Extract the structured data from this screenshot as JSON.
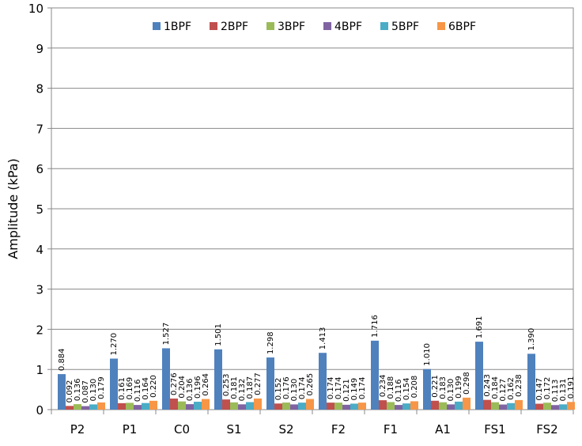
{
  "chart_data": {
    "type": "bar",
    "ylabel": "Amplitude (kPa)",
    "xlabel": "",
    "ylim": [
      0,
      10
    ],
    "yticks": [
      "0",
      "1",
      "2",
      "3",
      "4",
      "5",
      "6",
      "7",
      "8",
      "9",
      "10"
    ],
    "grid": true,
    "legend_position": "top-center",
    "categories": [
      "P2",
      "P1",
      "C0",
      "S1",
      "S2",
      "F2",
      "F1",
      "A1",
      "FS1",
      "FS2"
    ],
    "series": [
      {
        "name": "1BPF",
        "color": "#4F81BD",
        "values": [
          0.884,
          1.27,
          1.527,
          1.501,
          1.298,
          1.413,
          1.716,
          1.01,
          1.691,
          1.39
        ],
        "labels": [
          "0.884",
          "1.270",
          "1.527",
          "1.501",
          "1.298",
          "1.413",
          "1.716",
          "1.010",
          "1.691",
          "1.390"
        ]
      },
      {
        "name": "2BPF",
        "color": "#C0504D",
        "values": [
          0.092,
          0.161,
          0.276,
          0.253,
          0.152,
          0.174,
          0.234,
          0.221,
          0.243,
          0.147
        ],
        "labels": [
          "0.092",
          "0.161",
          "0.276",
          "0.253",
          "0.152",
          "0.174",
          "0.234",
          "0.221",
          "0.243",
          "0.147"
        ]
      },
      {
        "name": "3BPF",
        "color": "#9BBB59",
        "values": [
          0.136,
          0.169,
          0.204,
          0.181,
          0.176,
          0.174,
          0.188,
          0.183,
          0.184,
          0.172
        ],
        "labels": [
          "0.136",
          "0.169",
          "0.204",
          "0.181",
          "0.176",
          "0.174",
          "0.188",
          "0.183",
          "0.184",
          "0.172"
        ]
      },
      {
        "name": "4BPF",
        "color": "#8064A2",
        "values": [
          0.087,
          0.116,
          0.136,
          0.132,
          0.13,
          0.121,
          0.116,
          0.13,
          0.127,
          0.113
        ],
        "labels": [
          "0.087",
          "0.116",
          "0.136",
          "0.132",
          "0.130",
          "0.121",
          "0.116",
          "0.130",
          "0.127",
          "0.113"
        ]
      },
      {
        "name": "5BPF",
        "color": "#4BACC6",
        "values": [
          0.13,
          0.164,
          0.196,
          0.187,
          0.174,
          0.149,
          0.154,
          0.199,
          0.162,
          0.131
        ],
        "labels": [
          "0.130",
          "0.164",
          "0.196",
          "0.187",
          "0.174",
          "0.149",
          "0.154",
          "0.199",
          "0.162",
          "0.131"
        ]
      },
      {
        "name": "6BPF",
        "color": "#F79646",
        "values": [
          0.179,
          0.22,
          0.264,
          0.277,
          0.265,
          0.174,
          0.208,
          0.298,
          0.238,
          0.191
        ],
        "labels": [
          "0.179",
          "0.220",
          "0.264",
          "0.277",
          "0.265",
          "0.174",
          "0.208",
          "0.298",
          "0.238",
          "0.191"
        ]
      }
    ]
  }
}
